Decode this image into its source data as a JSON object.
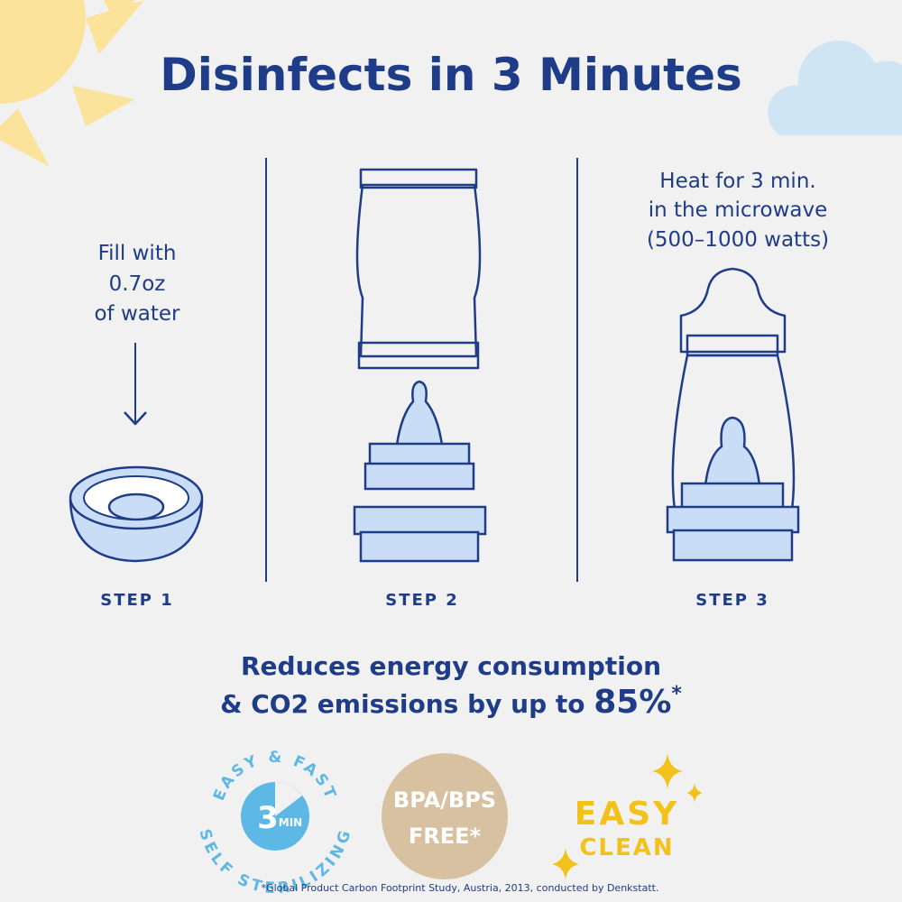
{
  "header": {
    "title": "Disinfects in 3 Minutes"
  },
  "steps": [
    {
      "instruction": [
        "Fill with",
        "0.7oz",
        "of water"
      ],
      "label": "STEP 1"
    },
    {
      "label": "STEP 2"
    },
    {
      "instruction": [
        "Heat for 3 min.",
        "in the microwave",
        "(500–1000 watts)"
      ],
      "label": "STEP 3"
    }
  ],
  "claim": {
    "line1": "Reduces energy consumption",
    "line2": "& CO2 emissions by up to",
    "highlight": "85%",
    "marker": "*"
  },
  "badges": {
    "fast": {
      "top_arc": "EASY & FAST",
      "bottom_arc": "SELF STERILIZING",
      "number": "3",
      "unit": "MIN"
    },
    "bpa": {
      "line1": "BPA/BPS",
      "line2": "FREE*"
    },
    "clean": {
      "line1": "EASY",
      "line2": "CLEAN"
    }
  },
  "footnote": "*Global Product Carbon Footprint Study, Austria, 2013, conducted by Denkstatt."
}
